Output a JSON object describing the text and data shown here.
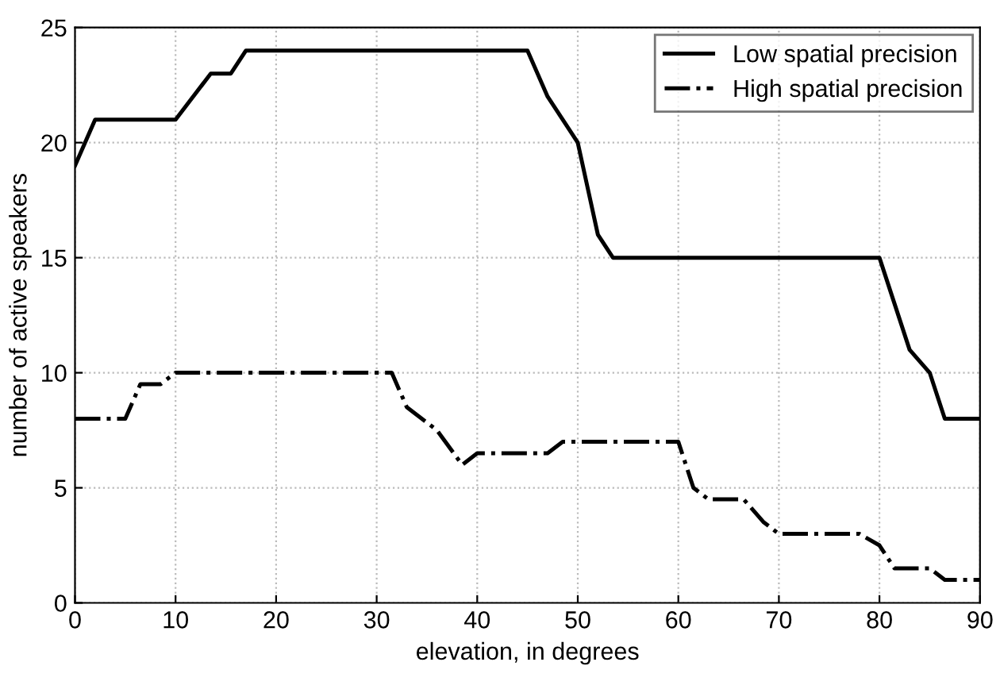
{
  "chart_data": {
    "type": "line",
    "xlabel": "elevation, in degrees",
    "ylabel": "number of active speakers",
    "xlim": [
      0,
      90
    ],
    "ylim": [
      0,
      25
    ],
    "xticks": [
      0,
      10,
      20,
      30,
      40,
      50,
      60,
      70,
      80,
      90
    ],
    "yticks": [
      0,
      5,
      10,
      15,
      20,
      25
    ],
    "grid": true,
    "legend": "top right",
    "marker": "none",
    "series": [
      {
        "name": "Low spatial precision",
        "color": "#000000",
        "line_style": "solid",
        "x": [
          0,
          2,
          10,
          13.5,
          15.5,
          17,
          45,
          47,
          50,
          52,
          53.5,
          80,
          83,
          85,
          86.5,
          90
        ],
        "values": [
          19,
          21,
          21,
          23,
          23,
          24,
          24,
          22,
          20,
          16,
          15,
          15,
          11,
          10,
          8,
          8
        ]
      },
      {
        "name": "High spatial precision",
        "color": "#000000",
        "line_style": "dashdot",
        "x": [
          0,
          5,
          6.5,
          8.5,
          10,
          31.5,
          33,
          36,
          38.5,
          40,
          47,
          48.5,
          60,
          61.5,
          63,
          66.5,
          68.5,
          70,
          78,
          80,
          81.5,
          85,
          86.5,
          90
        ],
        "values": [
          8,
          8,
          9.5,
          9.5,
          10,
          10,
          8.5,
          7.5,
          6,
          6.5,
          6.5,
          7,
          7,
          5,
          4.5,
          4.5,
          3.5,
          3,
          3,
          2.5,
          1.5,
          1.5,
          1,
          1
        ]
      }
    ]
  }
}
